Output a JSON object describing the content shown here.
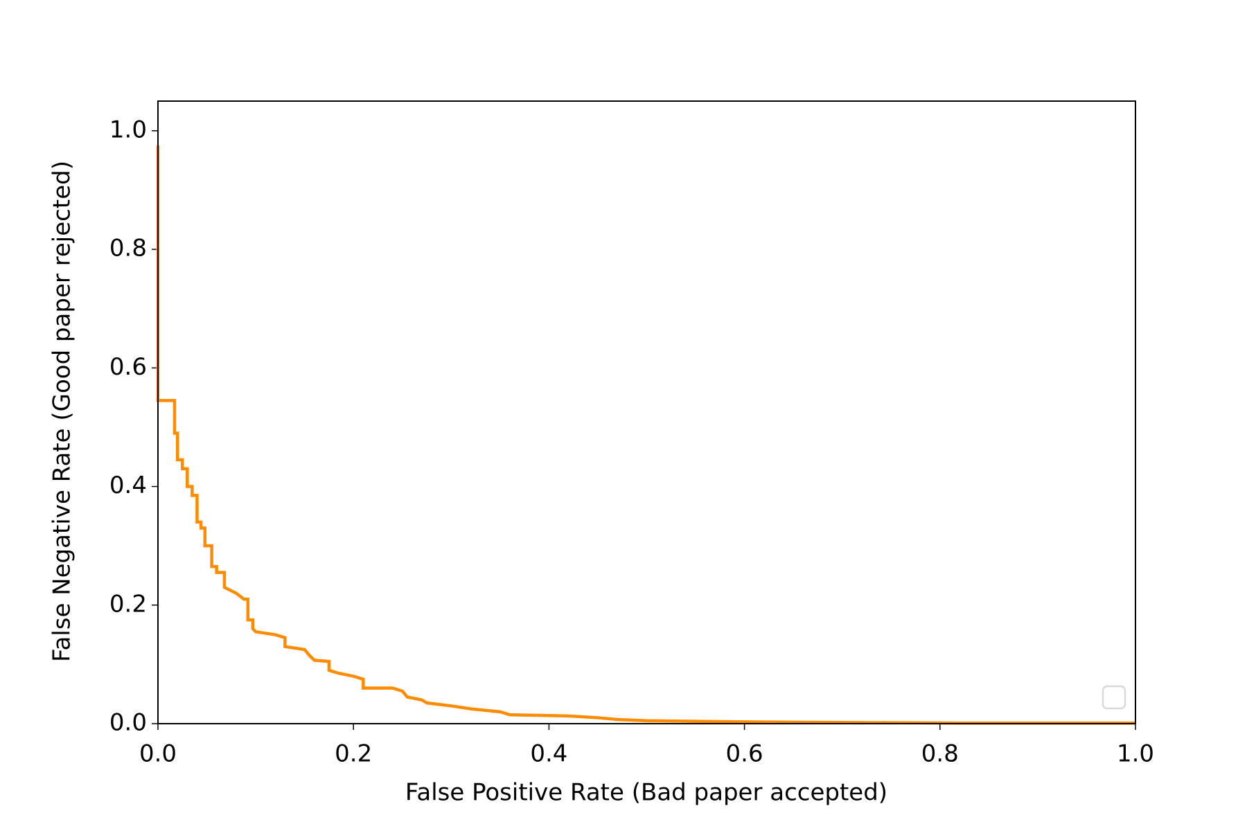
{
  "chart_data": {
    "type": "line",
    "xlabel": "False Positive Rate (Bad paper accepted)",
    "ylabel": "False Negative Rate (Good paper rejected)",
    "x": [
      0,
      0,
      0.017,
      0.017,
      0.02,
      0.02,
      0.025,
      0.025,
      0.03,
      0.03,
      0.035,
      0.035,
      0.04,
      0.04,
      0.044,
      0.044,
      0.048,
      0.048,
      0.055,
      0.055,
      0.06,
      0.06,
      0.068,
      0.068,
      0.08,
      0.088,
      0.092,
      0.092,
      0.097,
      0.097,
      0.1,
      0.12,
      0.13,
      0.13,
      0.15,
      0.155,
      0.16,
      0.175,
      0.175,
      0.185,
      0.2,
      0.21,
      0.21,
      0.24,
      0.25,
      0.255,
      0.27,
      0.275,
      0.3,
      0.32,
      0.35,
      0.36,
      0.42,
      0.45,
      0.47,
      0.5,
      0.55,
      0.6,
      0.7,
      0.82,
      1.0
    ],
    "series": [
      {
        "color": "#ff8c00",
        "values": [
          0.975,
          0.545,
          0.545,
          0.49,
          0.49,
          0.445,
          0.445,
          0.43,
          0.43,
          0.4,
          0.4,
          0.385,
          0.385,
          0.34,
          0.34,
          0.33,
          0.33,
          0.3,
          0.3,
          0.265,
          0.265,
          0.255,
          0.255,
          0.23,
          0.22,
          0.21,
          0.21,
          0.175,
          0.175,
          0.16,
          0.155,
          0.15,
          0.145,
          0.13,
          0.125,
          0.115,
          0.107,
          0.105,
          0.09,
          0.085,
          0.08,
          0.075,
          0.06,
          0.06,
          0.055,
          0.045,
          0.04,
          0.035,
          0.03,
          0.025,
          0.02,
          0.015,
          0.013,
          0.01,
          0.007,
          0.005,
          0.004,
          0.003,
          0.002,
          0.001,
          0.001
        ]
      }
    ],
    "xlim": [
      0,
      1
    ],
    "ylim": [
      0,
      1.05
    ],
    "xticks": [
      {
        "value": 0,
        "label": "0.0"
      },
      0.2,
      0.4,
      0.6,
      0.8,
      {
        "value": 1,
        "label": "1.0"
      }
    ],
    "yticks": [
      {
        "value": 0,
        "label": "0.0"
      },
      0.2,
      0.4,
      0.6,
      0.8,
      {
        "value": 1,
        "label": "1.0"
      }
    ],
    "legend": "lower right"
  }
}
